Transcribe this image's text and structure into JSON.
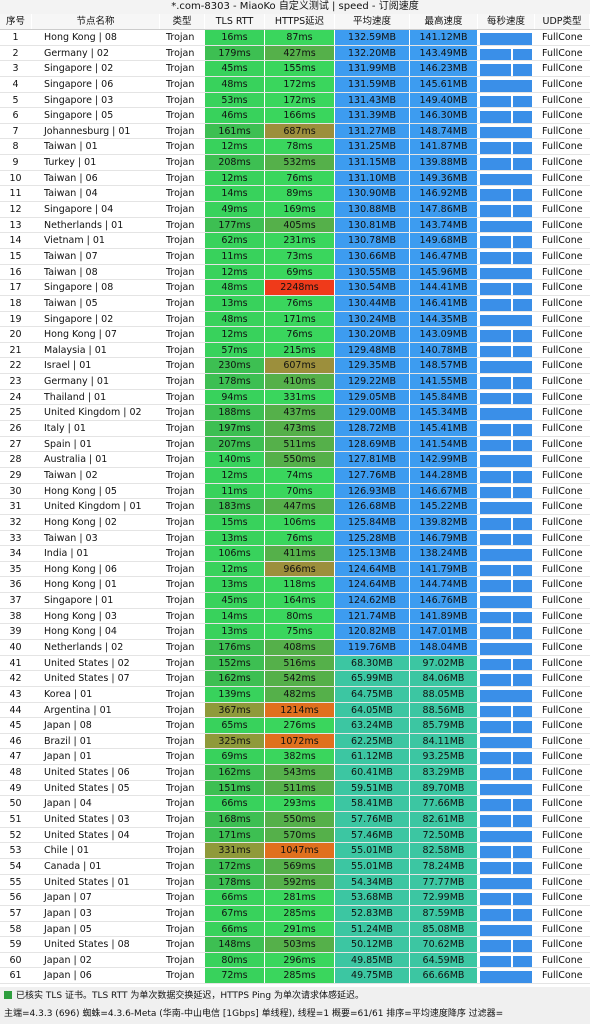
{
  "window": {
    "title": "*.com-8303 - MiaoKo 自定义测试 | speed - 订阅速度"
  },
  "table": {
    "headers": [
      "序号",
      "节点名称",
      "类型",
      "TLS RTT",
      "HTTPS延迟",
      "平均速度",
      "最高速度",
      "每秒速度",
      "UDP类型"
    ],
    "rows": [
      [
        "1",
        "Hong Kong | 08",
        "Trojan",
        "16ms",
        "87ms",
        "132.59MB",
        "141.12MB",
        "FullCone"
      ],
      [
        "2",
        "Germany | 02",
        "Trojan",
        "179ms",
        "427ms",
        "132.20MB",
        "143.49MB",
        "FullCone"
      ],
      [
        "3",
        "Singapore | 02",
        "Trojan",
        "45ms",
        "155ms",
        "131.99MB",
        "146.23MB",
        "FullCone"
      ],
      [
        "4",
        "Singapore | 06",
        "Trojan",
        "48ms",
        "172ms",
        "131.59MB",
        "145.61MB",
        "FullCone"
      ],
      [
        "5",
        "Singapore | 03",
        "Trojan",
        "53ms",
        "172ms",
        "131.43MB",
        "149.40MB",
        "FullCone"
      ],
      [
        "6",
        "Singapore | 05",
        "Trojan",
        "46ms",
        "166ms",
        "131.39MB",
        "146.30MB",
        "FullCone"
      ],
      [
        "7",
        "Johannesburg | 01",
        "Trojan",
        "161ms",
        "687ms",
        "131.27MB",
        "148.74MB",
        "FullCone"
      ],
      [
        "8",
        "Taiwan | 01",
        "Trojan",
        "12ms",
        "78ms",
        "131.25MB",
        "141.87MB",
        "FullCone"
      ],
      [
        "9",
        "Turkey | 01",
        "Trojan",
        "208ms",
        "532ms",
        "131.15MB",
        "139.88MB",
        "FullCone"
      ],
      [
        "10",
        "Taiwan | 06",
        "Trojan",
        "12ms",
        "76ms",
        "131.10MB",
        "149.36MB",
        "FullCone"
      ],
      [
        "11",
        "Taiwan | 04",
        "Trojan",
        "14ms",
        "89ms",
        "130.90MB",
        "146.92MB",
        "FullCone"
      ],
      [
        "12",
        "Singapore | 04",
        "Trojan",
        "49ms",
        "169ms",
        "130.88MB",
        "147.86MB",
        "FullCone"
      ],
      [
        "13",
        "Netherlands | 01",
        "Trojan",
        "177ms",
        "405ms",
        "130.81MB",
        "143.74MB",
        "FullCone"
      ],
      [
        "14",
        "Vietnam | 01",
        "Trojan",
        "62ms",
        "231ms",
        "130.78MB",
        "149.68MB",
        "FullCone"
      ],
      [
        "15",
        "Taiwan | 07",
        "Trojan",
        "11ms",
        "73ms",
        "130.66MB",
        "146.47MB",
        "FullCone"
      ],
      [
        "16",
        "Taiwan | 08",
        "Trojan",
        "12ms",
        "69ms",
        "130.55MB",
        "145.96MB",
        "FullCone"
      ],
      [
        "17",
        "Singapore | 08",
        "Trojan",
        "48ms",
        "2248ms",
        "130.54MB",
        "144.41MB",
        "FullCone"
      ],
      [
        "18",
        "Taiwan | 05",
        "Trojan",
        "13ms",
        "76ms",
        "130.44MB",
        "146.41MB",
        "FullCone"
      ],
      [
        "19",
        "Singapore | 02",
        "Trojan",
        "48ms",
        "171ms",
        "130.24MB",
        "144.35MB",
        "FullCone"
      ],
      [
        "20",
        "Hong Kong | 07",
        "Trojan",
        "12ms",
        "76ms",
        "130.20MB",
        "143.09MB",
        "FullCone"
      ],
      [
        "21",
        "Malaysia | 01",
        "Trojan",
        "57ms",
        "215ms",
        "129.48MB",
        "140.78MB",
        "FullCone"
      ],
      [
        "22",
        "Israel | 01",
        "Trojan",
        "230ms",
        "607ms",
        "129.35MB",
        "148.57MB",
        "FullCone"
      ],
      [
        "23",
        "Germany | 01",
        "Trojan",
        "178ms",
        "410ms",
        "129.22MB",
        "141.55MB",
        "FullCone"
      ],
      [
        "24",
        "Thailand | 01",
        "Trojan",
        "94ms",
        "331ms",
        "129.05MB",
        "145.84MB",
        "FullCone"
      ],
      [
        "25",
        "United Kingdom | 02",
        "Trojan",
        "188ms",
        "437ms",
        "129.00MB",
        "145.34MB",
        "FullCone"
      ],
      [
        "26",
        "Italy | 01",
        "Trojan",
        "197ms",
        "473ms",
        "128.72MB",
        "145.41MB",
        "FullCone"
      ],
      [
        "27",
        "Spain | 01",
        "Trojan",
        "207ms",
        "511ms",
        "128.69MB",
        "141.54MB",
        "FullCone"
      ],
      [
        "28",
        "Australia | 01",
        "Trojan",
        "140ms",
        "550ms",
        "127.81MB",
        "142.99MB",
        "FullCone"
      ],
      [
        "29",
        "Taiwan | 02",
        "Trojan",
        "12ms",
        "74ms",
        "127.76MB",
        "144.28MB",
        "FullCone"
      ],
      [
        "30",
        "Hong Kong | 05",
        "Trojan",
        "11ms",
        "70ms",
        "126.93MB",
        "146.67MB",
        "FullCone"
      ],
      [
        "31",
        "United Kingdom | 01",
        "Trojan",
        "183ms",
        "447ms",
        "126.68MB",
        "145.22MB",
        "FullCone"
      ],
      [
        "32",
        "Hong Kong | 02",
        "Trojan",
        "15ms",
        "106ms",
        "125.84MB",
        "139.82MB",
        "FullCone"
      ],
      [
        "33",
        "Taiwan | 03",
        "Trojan",
        "13ms",
        "76ms",
        "125.28MB",
        "146.79MB",
        "FullCone"
      ],
      [
        "34",
        "India | 01",
        "Trojan",
        "106ms",
        "411ms",
        "125.13MB",
        "138.24MB",
        "FullCone"
      ],
      [
        "35",
        "Hong Kong | 06",
        "Trojan",
        "12ms",
        "966ms",
        "124.64MB",
        "141.79MB",
        "FullCone"
      ],
      [
        "36",
        "Hong Kong | 01",
        "Trojan",
        "13ms",
        "118ms",
        "124.64MB",
        "144.74MB",
        "FullCone"
      ],
      [
        "37",
        "Singapore | 01",
        "Trojan",
        "45ms",
        "164ms",
        "124.62MB",
        "146.76MB",
        "FullCone"
      ],
      [
        "38",
        "Hong Kong | 03",
        "Trojan",
        "14ms",
        "80ms",
        "121.74MB",
        "141.89MB",
        "FullCone"
      ],
      [
        "39",
        "Hong Kong | 04",
        "Trojan",
        "13ms",
        "75ms",
        "120.82MB",
        "147.01MB",
        "FullCone"
      ],
      [
        "40",
        "Netherlands | 02",
        "Trojan",
        "176ms",
        "408ms",
        "119.76MB",
        "148.04MB",
        "FullCone"
      ],
      [
        "41",
        "United States | 02",
        "Trojan",
        "152ms",
        "516ms",
        "68.30MB",
        "97.02MB",
        "FullCone"
      ],
      [
        "42",
        "United States | 07",
        "Trojan",
        "162ms",
        "542ms",
        "65.99MB",
        "84.06MB",
        "FullCone"
      ],
      [
        "43",
        "Korea | 01",
        "Trojan",
        "139ms",
        "482ms",
        "64.75MB",
        "88.05MB",
        "FullCone"
      ],
      [
        "44",
        "Argentina | 01",
        "Trojan",
        "367ms",
        "1214ms",
        "64.05MB",
        "88.56MB",
        "FullCone"
      ],
      [
        "45",
        "Japan | 08",
        "Trojan",
        "65ms",
        "276ms",
        "63.24MB",
        "85.79MB",
        "FullCone"
      ],
      [
        "46",
        "Brazil | 01",
        "Trojan",
        "325ms",
        "1072ms",
        "62.25MB",
        "84.11MB",
        "FullCone"
      ],
      [
        "47",
        "Japan | 01",
        "Trojan",
        "69ms",
        "382ms",
        "61.12MB",
        "93.25MB",
        "FullCone"
      ],
      [
        "48",
        "United States | 06",
        "Trojan",
        "162ms",
        "543ms",
        "60.41MB",
        "83.29MB",
        "FullCone"
      ],
      [
        "49",
        "United States | 05",
        "Trojan",
        "151ms",
        "511ms",
        "59.51MB",
        "89.70MB",
        "FullCone"
      ],
      [
        "50",
        "Japan | 04",
        "Trojan",
        "66ms",
        "293ms",
        "58.41MB",
        "77.66MB",
        "FullCone"
      ],
      [
        "51",
        "United States | 03",
        "Trojan",
        "168ms",
        "550ms",
        "57.76MB",
        "82.61MB",
        "FullCone"
      ],
      [
        "52",
        "United States | 04",
        "Trojan",
        "171ms",
        "570ms",
        "57.46MB",
        "72.50MB",
        "FullCone"
      ],
      [
        "53",
        "Chile | 01",
        "Trojan",
        "331ms",
        "1047ms",
        "55.01MB",
        "82.58MB",
        "FullCone"
      ],
      [
        "54",
        "Canada | 01",
        "Trojan",
        "172ms",
        "569ms",
        "55.01MB",
        "78.24MB",
        "FullCone"
      ],
      [
        "55",
        "United States | 01",
        "Trojan",
        "178ms",
        "592ms",
        "54.34MB",
        "77.77MB",
        "FullCone"
      ],
      [
        "56",
        "Japan | 07",
        "Trojan",
        "66ms",
        "281ms",
        "53.68MB",
        "72.99MB",
        "FullCone"
      ],
      [
        "57",
        "Japan | 03",
        "Trojan",
        "67ms",
        "285ms",
        "52.83MB",
        "87.59MB",
        "FullCone"
      ],
      [
        "58",
        "Japan | 05",
        "Trojan",
        "66ms",
        "291ms",
        "51.24MB",
        "85.08MB",
        "FullCone"
      ],
      [
        "59",
        "United States | 08",
        "Trojan",
        "148ms",
        "503ms",
        "50.12MB",
        "70.62MB",
        "FullCone"
      ],
      [
        "60",
        "Japan | 02",
        "Trojan",
        "80ms",
        "296ms",
        "49.85MB",
        "64.59MB",
        "FullCone"
      ],
      [
        "61",
        "Japan | 06",
        "Trojan",
        "72ms",
        "285ms",
        "49.75MB",
        "66.66MB",
        "FullCone"
      ]
    ]
  },
  "footer": {
    "note": "已核实 TLS 证书。TLS RTT 为单次数据交换延迟，HTTPS Ping 为单次请求体感延迟。",
    "status": "主端=4.3.3 (696) 蜘蛛=4.3.6-Meta (华南-中山电信 [1Gbps] 单线程), 线程=1 概要=61/61 排序=平均速度降序 过滤器="
  }
}
